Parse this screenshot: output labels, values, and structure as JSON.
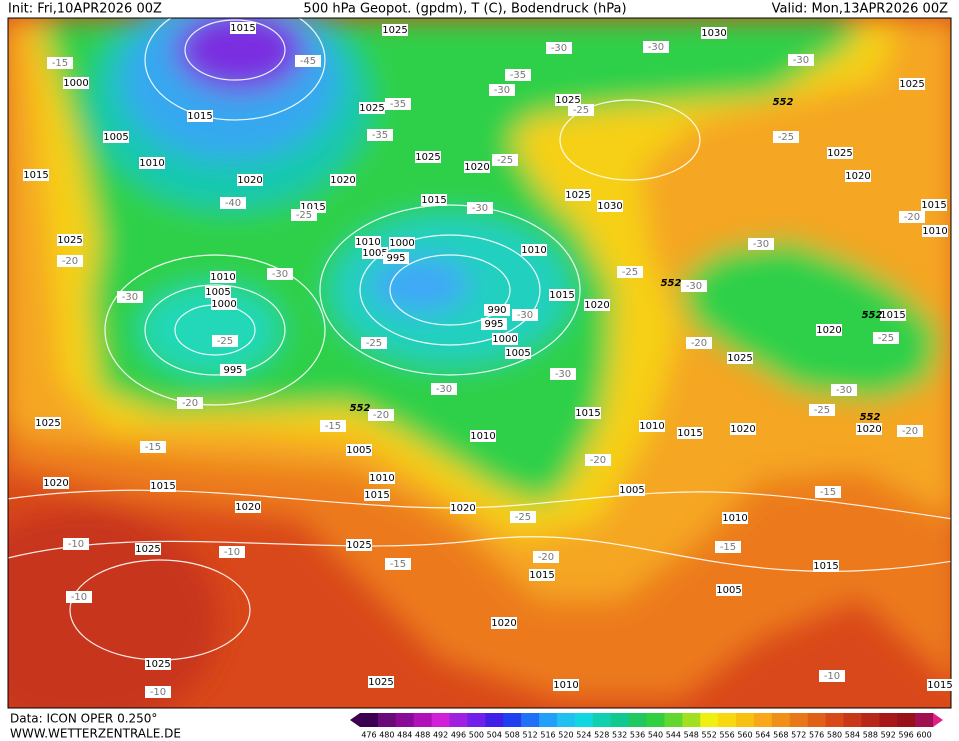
{
  "header": {
    "init": "Init: Fri,10APR2026 00Z",
    "title": "500 hPa Geopot. (gpdm), T (C), Bodendruck (hPa)",
    "valid": "Valid: Mon,13APR2026 00Z"
  },
  "footer": {
    "data": "Data: ICON OPER 0.250°",
    "site": "WWW.WETTERZENTRALE.DE"
  },
  "colorbar": {
    "values": [
      476,
      480,
      484,
      488,
      492,
      496,
      500,
      504,
      508,
      512,
      516,
      520,
      524,
      528,
      532,
      536,
      540,
      544,
      548,
      552,
      556,
      560,
      564,
      568,
      572,
      576,
      580,
      584,
      588,
      592,
      596,
      600
    ]
  },
  "map": {
    "isobar_labels": [
      "1015",
      "1025",
      "1030",
      "1000",
      "1015",
      "1025",
      "1025",
      "1025",
      "1005",
      "1010",
      "1025",
      "1020",
      "1025",
      "1015",
      "1020",
      "1020",
      "1015",
      "1025",
      "1030",
      "1020",
      "1015",
      "1015",
      "1025",
      "1010",
      "1000",
      "1005",
      "995",
      "1010",
      "1010",
      "1010",
      "1005",
      "1000",
      "1015",
      "1020",
      "990",
      "995",
      "1015",
      "1020",
      "1000",
      "1005",
      "1025",
      "995",
      "1015",
      "1025",
      "1010",
      "1015",
      "1020",
      "1020",
      "1010",
      "1005",
      "1010",
      "1020",
      "1015",
      "1015",
      "1005",
      "1020",
      "1020",
      "1010",
      "1025",
      "1025",
      "1015",
      "1015",
      "1005",
      "1020",
      "1025",
      "1025",
      "1010",
      "1015"
    ],
    "temperature_labels": [
      "-15",
      "-30",
      "-30",
      "-30",
      "-45",
      "-35",
      "-30",
      "-35",
      "-25",
      "-25",
      "-35",
      "-25",
      "-40",
      "-25",
      "-30",
      "-20",
      "-20",
      "-30",
      "-30",
      "-25",
      "-30",
      "-30",
      "-25",
      "-30",
      "-25",
      "-25",
      "-20",
      "-30",
      "-30",
      "-30",
      "-20",
      "-25",
      "-15",
      "-20",
      "-20",
      "-15",
      "-20",
      "-15",
      "-25",
      "-10",
      "-10",
      "-15",
      "-15",
      "-20",
      "-10",
      "-10",
      "-10"
    ],
    "height_labels": [
      "552",
      "552",
      "552",
      "552",
      "552"
    ]
  }
}
